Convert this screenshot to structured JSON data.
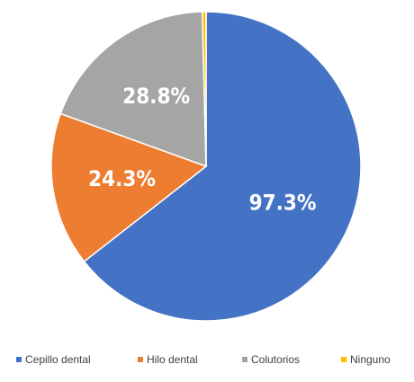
{
  "chart_data": {
    "type": "pie",
    "categories": [
      "Cepillo dental",
      "Hilo dental",
      "Colutorios",
      "Ninguno"
    ],
    "values": [
      97.3,
      24.3,
      28.8,
      0.6
    ],
    "value_labels": [
      "97.3%",
      "24.3%",
      "28.8%",
      null
    ],
    "colors": [
      "#4472c4",
      "#ed7d31",
      "#a5a5a5",
      "#ffc000"
    ],
    "legend": "bottom"
  }
}
